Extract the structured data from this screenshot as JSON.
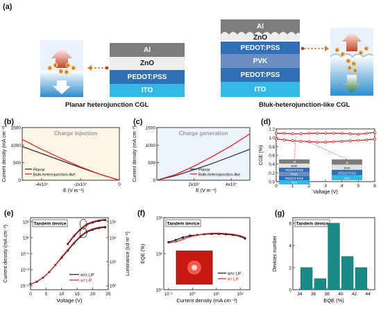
{
  "panels": {
    "a": {
      "label": "(a)",
      "planar": {
        "layers": [
          "Al",
          "ZnO",
          "PEDOT:PSS",
          "ITO"
        ],
        "caption": "Planar heterojunction CGL",
        "charge_labels": [
          "e",
          "h"
        ]
      },
      "bulk": {
        "layers": [
          "Al",
          "ZnO",
          "PEDOT:PSS",
          "PVK",
          "PEDOT:PSS",
          "ITO"
        ],
        "caption": "Bluk-heterojunction-like CGL"
      }
    },
    "b": {
      "label": "(b)",
      "title": "Charge injection",
      "ylabel": "Current density (mA cm⁻²)",
      "xlabel": "E (V m⁻¹)",
      "legend": [
        "Planar",
        "Bulk-heterojunction-like"
      ]
    },
    "c": {
      "label": "(c)",
      "title": "Charge generation",
      "ylabel": "Current density (mA cm⁻²)",
      "xlabel": "E (V m⁻¹)",
      "legend": [
        "Planar",
        "Bulk-heterojunction-like"
      ]
    },
    "d": {
      "label": "(d)",
      "ylabel": "CGE (%)",
      "xlabel": "Voltage (V)",
      "inset_left": [
        "Al",
        "ZnO",
        "PEDOT:PSS",
        "PVK",
        "PEDOT:PSS",
        "ITO"
      ],
      "inset_right": [
        "Al",
        "ZnO",
        "PEDOT:PSS",
        "ITO"
      ]
    },
    "e": {
      "label": "(e)",
      "title": "Tandem device",
      "ylabel": "Current density (mA cm⁻²)",
      "ylabel2": "Luminance (cd m⁻²)",
      "xlabel": "Voltage (V)",
      "legend": [
        "w/o LiF",
        "w/  LiF"
      ]
    },
    "f": {
      "label": "(f)",
      "title": "Tandem device",
      "ylabel": "EQE (%)",
      "xlabel": "Current density (mA cm⁻²)",
      "legend": [
        "w/o LiF",
        "w/  LiF"
      ]
    },
    "g": {
      "label": "(g)",
      "title": "Tandem device",
      "ylabel": "Devices number",
      "xlabel": "EQE (%)"
    }
  },
  "chart_data": [
    {
      "type": "line",
      "panel": "b",
      "title": "Charge injection",
      "xlabel": "E (V m⁻¹)",
      "ylabel": "Current density (mA cm⁻²)",
      "xlim": [
        -50000000,
        0
      ],
      "ylim": [
        0,
        1500
      ],
      "x_ticks": [
        "-4x10⁷",
        "-2x10⁷",
        "0"
      ],
      "y_ticks": [
        "0",
        "500",
        "1000",
        "1500"
      ],
      "series": [
        {
          "name": "Planar",
          "color": "#333333",
          "x": [
            -50000000,
            -40000000,
            -30000000,
            -20000000,
            -10000000,
            0
          ],
          "values": [
            960,
            760,
            560,
            360,
            170,
            0
          ]
        },
        {
          "name": "Bulk-heterojunction-like",
          "color": "#d62728",
          "x": [
            -50000000,
            -40000000,
            -30000000,
            -20000000,
            -10000000,
            0
          ],
          "values": [
            1160,
            880,
            620,
            380,
            170,
            0
          ]
        }
      ]
    },
    {
      "type": "line",
      "panel": "c",
      "title": "Charge generation",
      "xlabel": "E (V m⁻¹)",
      "ylabel": "Current density (mA cm⁻²)",
      "xlim": [
        0,
        50000000
      ],
      "ylim": [
        0,
        1500
      ],
      "x_ticks": [
        "2x10⁷",
        "4x10⁷"
      ],
      "y_ticks": [
        "0",
        "500",
        "1000",
        "1500"
      ],
      "series": [
        {
          "name": "Planar",
          "color": "#333333",
          "x": [
            0,
            10000000,
            20000000,
            30000000,
            40000000,
            50000000
          ],
          "values": [
            0,
            130,
            300,
            480,
            680,
            880
          ]
        },
        {
          "name": "Bulk-heterojunction-like",
          "color": "#d62728",
          "x": [
            0,
            10000000,
            20000000,
            30000000,
            40000000,
            50000000
          ],
          "values": [
            0,
            160,
            400,
            680,
            980,
            1320
          ]
        }
      ]
    },
    {
      "type": "line",
      "panel": "d",
      "xlabel": "Voltage (V)",
      "ylabel": "CGE (%)",
      "xlim": [
        0,
        6
      ],
      "ylim": [
        0,
        1.2
      ],
      "x_ticks": [
        "0",
        "1",
        "2",
        "3",
        "4",
        "5",
        "6"
      ],
      "y_ticks": [
        "0.0",
        "0.2",
        "0.4",
        "0.6",
        "0.8",
        "1.0",
        "1.2"
      ],
      "series": [
        {
          "color": "#d62728",
          "x": [
            0,
            0.5,
            1,
            1.5,
            2,
            2.5,
            3,
            3.5,
            4,
            4.5,
            5,
            5.5,
            6
          ],
          "values": [
            1.1,
            1.1,
            1.09,
            1.09,
            1.1,
            1.1,
            1.1,
            1.1,
            1.1,
            1.09,
            1.08,
            1.1,
            1.12
          ]
        },
        {
          "color": "#d62728",
          "x": [
            0,
            0.5,
            1,
            1.5,
            2,
            2.5,
            3,
            3.5,
            4,
            4.5,
            5,
            5.5,
            6
          ],
          "values": [
            0.97,
            0.95,
            0.93,
            0.92,
            0.91,
            0.9,
            0.9,
            0.91,
            0.92,
            0.93,
            0.94,
            0.95,
            0.97
          ]
        }
      ]
    },
    {
      "type": "scatter",
      "panel": "e",
      "title": "Tandem device",
      "xlabel": "Voltage (V)",
      "ylabel": "Current density (mA cm⁻²)",
      "xlim": [
        0,
        25
      ],
      "y_log": true,
      "x_ticks": [
        "0",
        "5",
        "10",
        "15",
        "20",
        "25"
      ],
      "y_ticks": [
        "10⁻⁵",
        "10⁻³",
        "10⁻¹",
        "10¹",
        "10³"
      ],
      "y2_ticks": [
        "10²",
        "10³",
        "10⁴",
        "10⁵"
      ],
      "series": [
        {
          "name": "w/o LiF",
          "color": "#111111",
          "x": [
            0,
            2,
            4,
            6,
            8,
            10,
            12,
            14,
            16,
            18,
            20,
            22,
            24
          ],
          "log_values": [
            -4.8,
            -4.5,
            -4.0,
            -3.3,
            -2.4,
            -1.5,
            -0.6,
            0.3,
            1.1,
            1.7,
            2.0,
            2.2,
            2.3
          ]
        },
        {
          "name": "w/  LiF",
          "color": "#d62728",
          "x": [
            0,
            2,
            4,
            6,
            8,
            10,
            12,
            14,
            16,
            18,
            20,
            22,
            24
          ],
          "log_values": [
            -4.8,
            -4.5,
            -4.0,
            -3.3,
            -2.4,
            -1.4,
            -0.5,
            0.4,
            1.2,
            1.8,
            2.1,
            2.3,
            2.4
          ]
        },
        {
          "name": "w/o LiF luminance",
          "color": "#111111",
          "x": [
            12,
            14,
            16,
            18,
            20,
            22,
            24
          ],
          "log_values": [
            0.2,
            1.2,
            2.0,
            2.6,
            2.9,
            3.1,
            3.2
          ]
        },
        {
          "name": "w/  LiF luminance",
          "color": "#d62728",
          "x": [
            12,
            14,
            16,
            18,
            20,
            22,
            24
          ],
          "log_values": [
            0.3,
            1.3,
            2.1,
            2.7,
            3.0,
            3.2,
            3.3
          ]
        }
      ]
    },
    {
      "type": "scatter",
      "panel": "f",
      "title": "Tandem device",
      "xlabel": "Current density (mA cm⁻²)",
      "ylabel": "EQE (%)",
      "x_log": true,
      "y_log": true,
      "x_ticks": [
        "10⁻¹",
        "10⁰",
        "10¹",
        "10²"
      ],
      "y_ticks": [
        "10⁰",
        "10¹",
        "10²"
      ],
      "series": [
        {
          "name": "w/o LiF",
          "color": "#111111",
          "log_x": [
            -1,
            -0.7,
            -0.4,
            -0.1,
            0.2,
            0.5,
            0.8,
            1.1,
            1.4,
            1.7,
            2.0,
            2.2
          ],
          "log_values": [
            1.32,
            1.38,
            1.45,
            1.5,
            1.52,
            1.54,
            1.55,
            1.55,
            1.54,
            1.52,
            1.48,
            1.42
          ]
        },
        {
          "name": "w/  LiF",
          "color": "#d62728",
          "log_x": [
            -1,
            -0.7,
            -0.4,
            -0.1,
            0.2,
            0.5,
            0.8,
            1.1,
            1.4,
            1.7,
            2.0,
            2.2
          ],
          "log_values": [
            1.3,
            1.33,
            1.4,
            1.47,
            1.52,
            1.55,
            1.57,
            1.57,
            1.56,
            1.54,
            1.5,
            1.45
          ]
        }
      ]
    },
    {
      "type": "bar",
      "panel": "g",
      "title": "Tandem device",
      "xlabel": "EQE (%)",
      "ylabel": "Devices number",
      "categories": [
        "34",
        "36",
        "38",
        "40",
        "42",
        "44"
      ],
      "x": [
        35,
        37,
        39,
        41,
        43
      ],
      "values": [
        2,
        1,
        6,
        3,
        2
      ],
      "ylim": [
        0,
        6
      ],
      "y_ticks": [
        "0",
        "2",
        "4",
        "6"
      ],
      "color": "#1a8a86"
    }
  ]
}
